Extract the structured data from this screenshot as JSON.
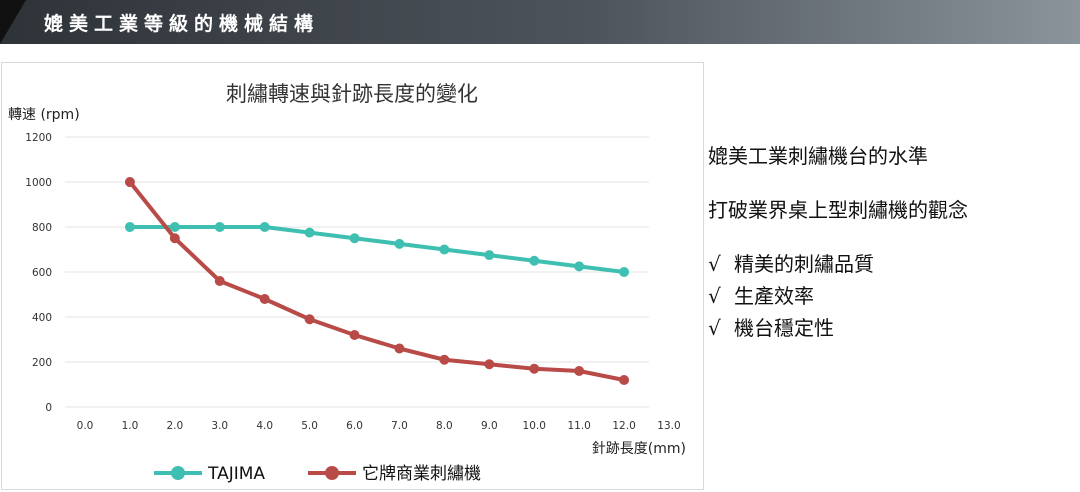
{
  "header": {
    "title": "媲美工業等級的機械結構"
  },
  "chart_data": {
    "type": "line",
    "title": "刺繡轉速與針跡長度的變化",
    "ylabel": "轉速 (rpm)",
    "xlabel": "針跡長度(mm)",
    "xlim": [
      0,
      13
    ],
    "ylim": [
      0,
      1200
    ],
    "x_ticks": [
      "0.0",
      "1.0",
      "2.0",
      "3.0",
      "4.0",
      "5.0",
      "6.0",
      "7.0",
      "8.0",
      "9.0",
      "10.0",
      "11.0",
      "12.0",
      "13.0"
    ],
    "y_ticks": [
      "0",
      "200",
      "400",
      "600",
      "800",
      "1000",
      "1200"
    ],
    "grid": true,
    "legend_position": "bottom",
    "x": [
      1,
      2,
      3,
      4,
      5,
      6,
      7,
      8,
      9,
      10,
      11,
      12
    ],
    "series": [
      {
        "name": "TAJIMA",
        "color": "#3fbfb1",
        "values": [
          800,
          800,
          800,
          800,
          775,
          750,
          725,
          700,
          675,
          650,
          625,
          600
        ]
      },
      {
        "name": "它牌商業刺繡機",
        "color": "#b84b47",
        "values": [
          1000,
          750,
          560,
          480,
          390,
          320,
          260,
          210,
          190,
          170,
          160,
          120
        ]
      }
    ]
  },
  "side": {
    "heading": "媲美工業刺繡機台的水準",
    "subheading": "打破業界桌上型刺繡機的觀念",
    "check": "√",
    "features": [
      "精美的刺繡品質",
      "生產效率",
      "機台穩定性"
    ]
  }
}
